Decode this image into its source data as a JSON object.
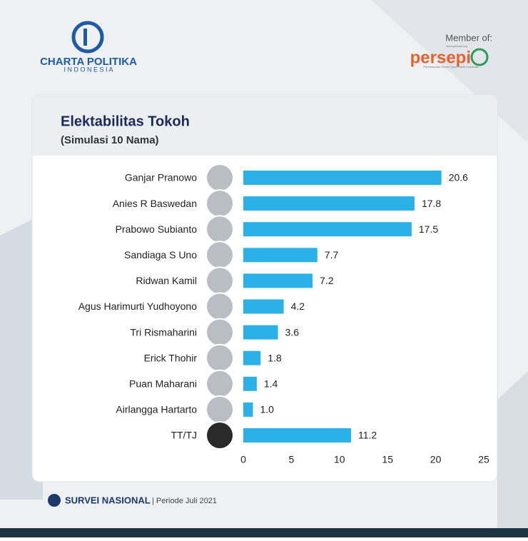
{
  "header": {
    "brand": "CHARTA POLITIKA",
    "brand_sub": "I N D O N E S I A",
    "member_label": "Member of:",
    "member_name": "persepi",
    "member_url": "www.persepi.org",
    "member_desc": "Perkumpulan Survei Opini Publik Indonesia"
  },
  "chart_data": {
    "type": "bar",
    "orientation": "horizontal",
    "title": "Elektabilitas Tokoh",
    "subtitle": "(Simulasi 10 Nama)",
    "categories": [
      "Ganjar Pranowo",
      "Anies R Baswedan",
      "Prabowo Subianto",
      "Sandiaga S Uno",
      "Ridwan Kamil",
      "Agus Harimurti Yudhoyono",
      "Tri Rismaharini",
      "Erick Thohir",
      "Puan Maharani",
      "Airlangga Hartarto",
      "TT/TJ"
    ],
    "values": [
      20.6,
      17.8,
      17.5,
      7.7,
      7.2,
      4.2,
      3.6,
      1.8,
      1.4,
      1.0,
      11.2
    ],
    "value_labels": [
      "20.6",
      "17.8",
      "17.5",
      "7.7",
      "7.2",
      "4.2",
      "3.6",
      "1.8",
      "1.4",
      "1.0",
      "11.2"
    ],
    "color": "#2cb0e8",
    "xlim": [
      0,
      25
    ],
    "xticks": [
      0,
      5,
      10,
      15,
      20,
      25
    ],
    "grid": false
  },
  "footer": {
    "survey": "SURVEI NASIONAL",
    "period": "| Periode Juli 2021"
  }
}
